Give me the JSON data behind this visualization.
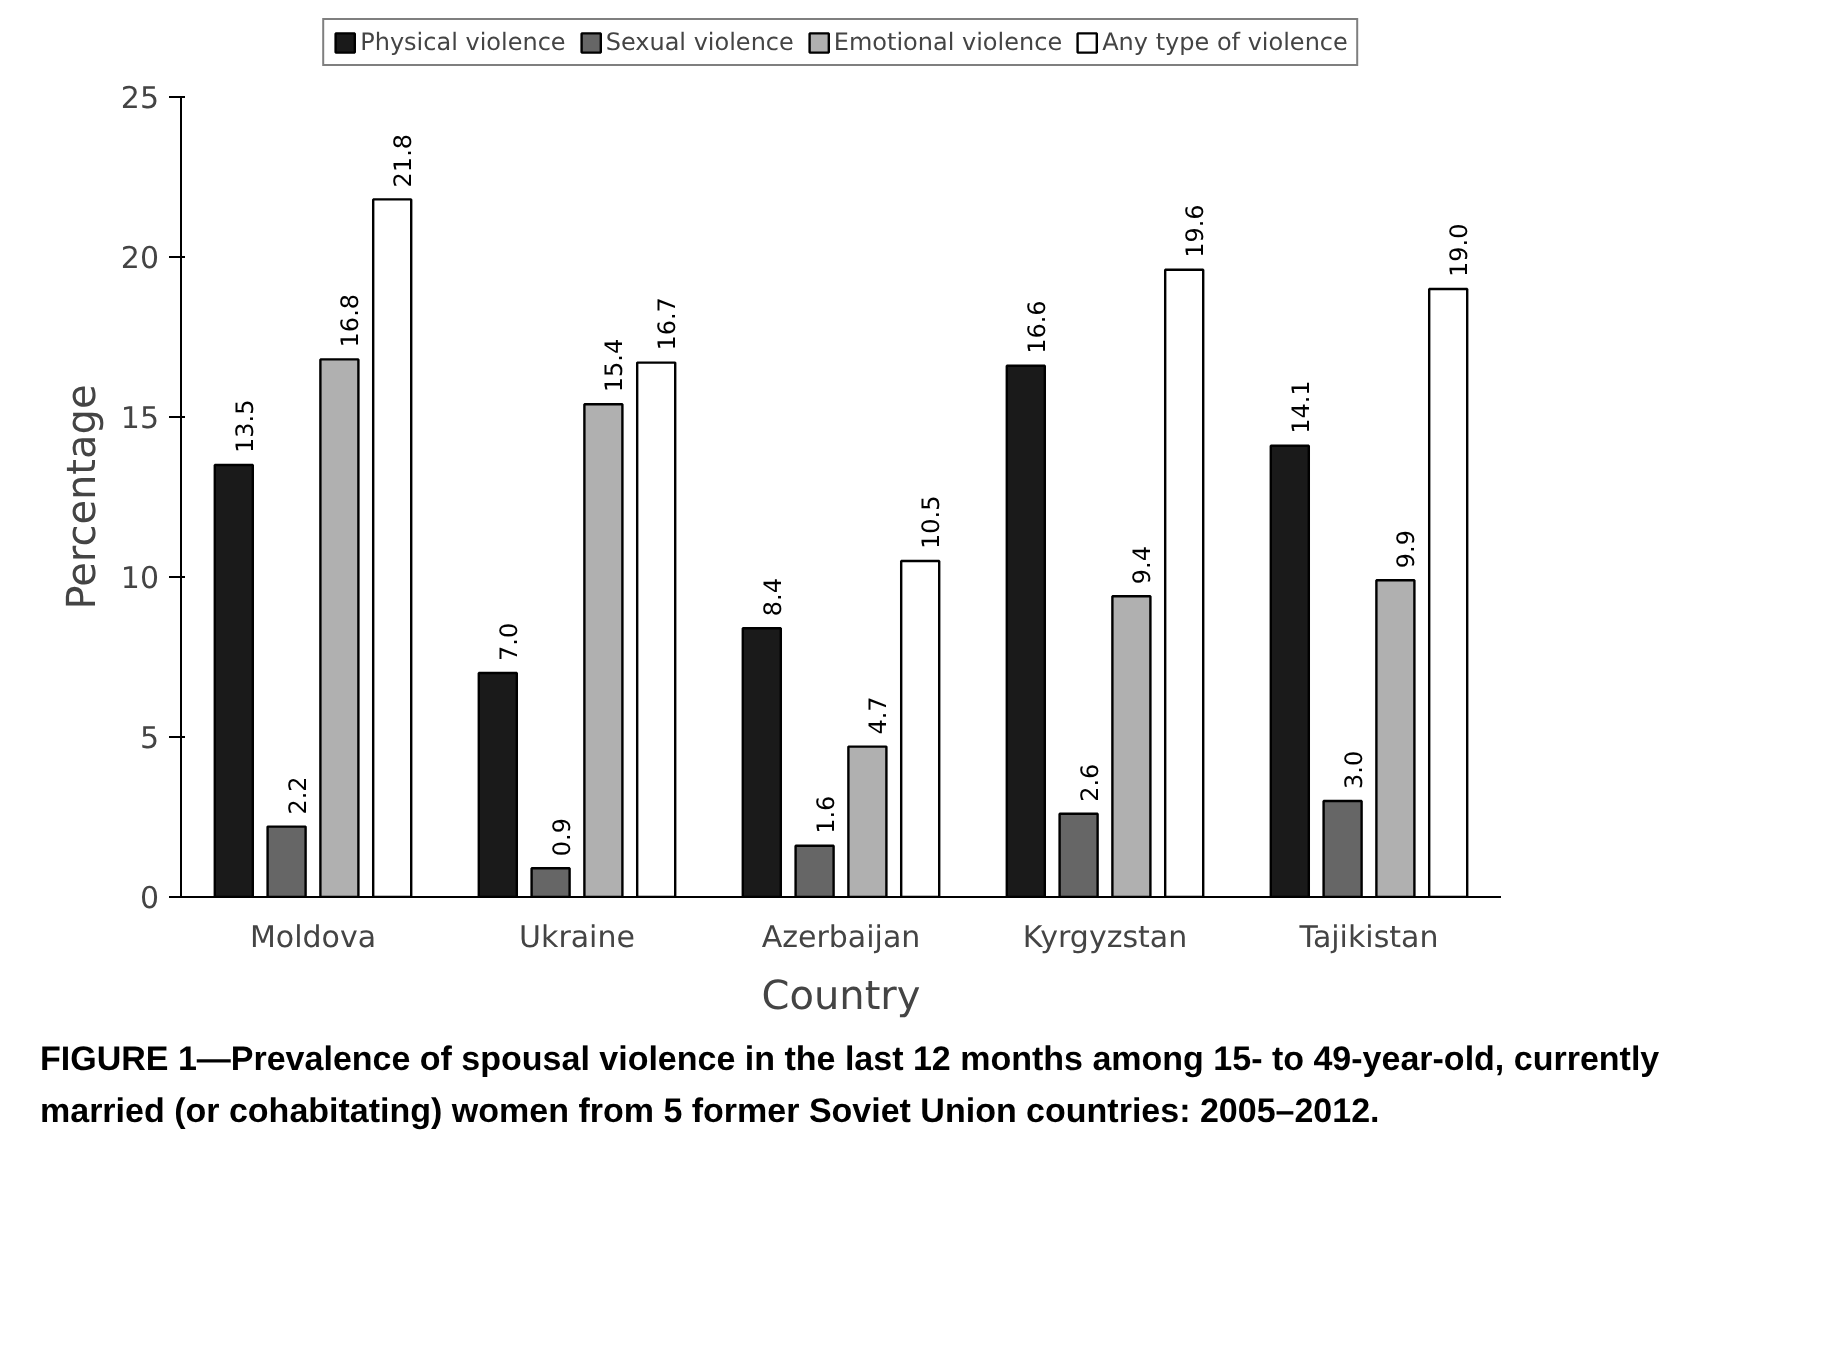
{
  "chart_data": {
    "type": "bar",
    "xlabel": "Country",
    "ylabel": "Percentage",
    "categories": [
      "Moldova",
      "Ukraine",
      "Azerbaijan",
      "Kyrgyzstan",
      "Tajikistan"
    ],
    "series": [
      {
        "name": "Physical violence",
        "color": "#1a1a1a",
        "values": [
          13.5,
          7.0,
          8.4,
          16.6,
          14.1
        ],
        "value_labels": [
          "13.5",
          "7.0",
          "8.4",
          "16.6",
          "14.1"
        ]
      },
      {
        "name": "Sexual violence",
        "color": "#666666",
        "values": [
          2.2,
          0.9,
          1.6,
          2.6,
          3.0
        ],
        "value_labels": [
          "2.2",
          "0.9",
          "1.6",
          "2.6",
          "3.0"
        ]
      },
      {
        "name": "Emotional violence",
        "color": "#b0b0b0",
        "values": [
          16.8,
          15.4,
          4.7,
          9.4,
          9.9
        ],
        "value_labels": [
          "16.8",
          "15.4",
          "4.7",
          "9.4",
          "9.9"
        ]
      },
      {
        "name": "Any type of violence",
        "color": "#ffffff",
        "values": [
          21.8,
          16.7,
          10.5,
          19.6,
          19.0
        ],
        "value_labels": [
          "21.8",
          "16.7",
          "10.5",
          "19.6",
          "19.0"
        ]
      }
    ],
    "ylim": [
      0,
      25
    ],
    "yticks": [
      0,
      5,
      10,
      15,
      20,
      25
    ],
    "legend": "top",
    "annotations": [
      "FIGURE 1—Prevalence of spousal violence in the last 12 months among 15- to 49-year-old, currently married (or cohabitating) women from 5 former Soviet Union countries: 2005–2012."
    ]
  }
}
